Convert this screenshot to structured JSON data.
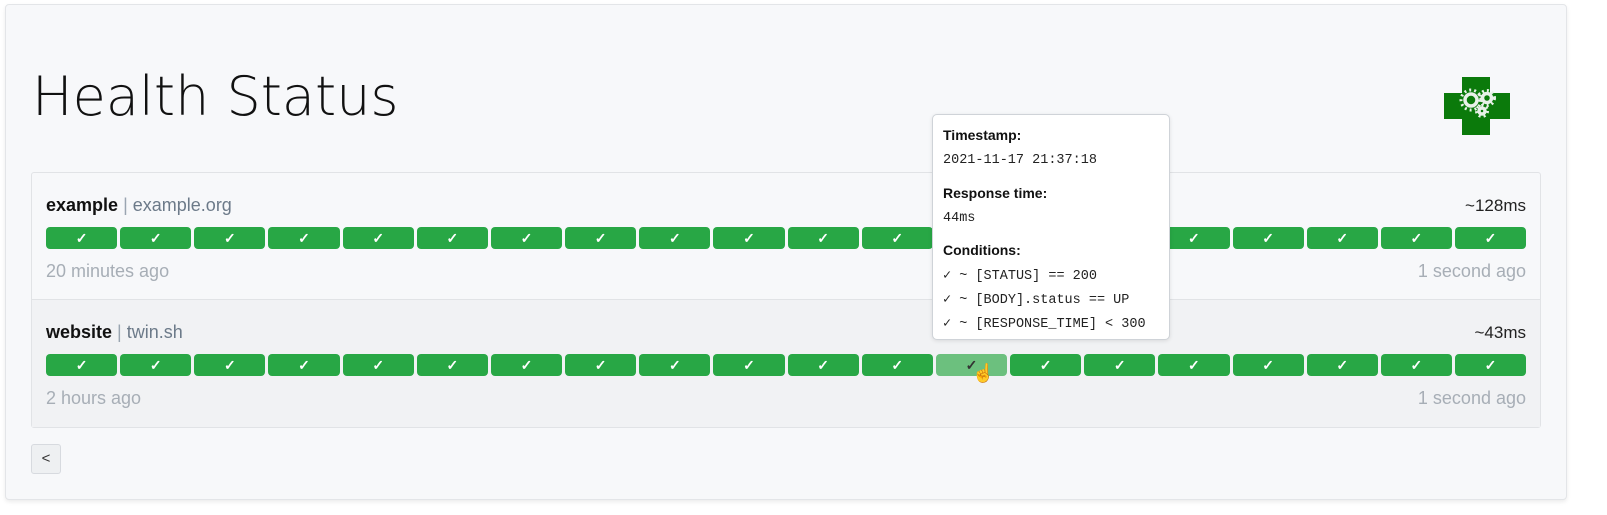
{
  "page": {
    "title": "Health Status",
    "logo_alt": "health-cross-with-gears"
  },
  "colors": {
    "success": "#28a745",
    "hover_bar": "#6cc07e"
  },
  "services": [
    {
      "name": "example",
      "host": "example.org",
      "avg_response": "~128ms",
      "oldest": "20 minutes ago",
      "newest": "1 second ago",
      "results": [
        "✓",
        "✓",
        "✓",
        "✓",
        "✓",
        "✓",
        "✓",
        "✓",
        "✓",
        "✓",
        "✓",
        "✓",
        "✓",
        "✓",
        "✓",
        "✓",
        "✓",
        "✓",
        "✓",
        "✓"
      ]
    },
    {
      "name": "website",
      "host": "twin.sh",
      "avg_response": "~43ms",
      "oldest": "2 hours ago",
      "newest": "1 second ago",
      "results": [
        "✓",
        "✓",
        "✓",
        "✓",
        "✓",
        "✓",
        "✓",
        "✓",
        "✓",
        "✓",
        "✓",
        "✓",
        "✓",
        "✓",
        "✓",
        "✓",
        "✓",
        "✓",
        "✓",
        "✓"
      ]
    }
  ],
  "separator": "|",
  "pagination": {
    "prev_label": "<"
  },
  "tooltip": {
    "timestamp_label": "Timestamp:",
    "timestamp": "2021-11-17 21:37:18",
    "response_time_label": "Response time:",
    "response_time": "44ms",
    "conditions_label": "Conditions:",
    "conditions": [
      "✓ ~ [STATUS] == 200",
      "✓ ~ [BODY].status == UP",
      "✓ ~ [RESPONSE_TIME] < 300"
    ]
  }
}
